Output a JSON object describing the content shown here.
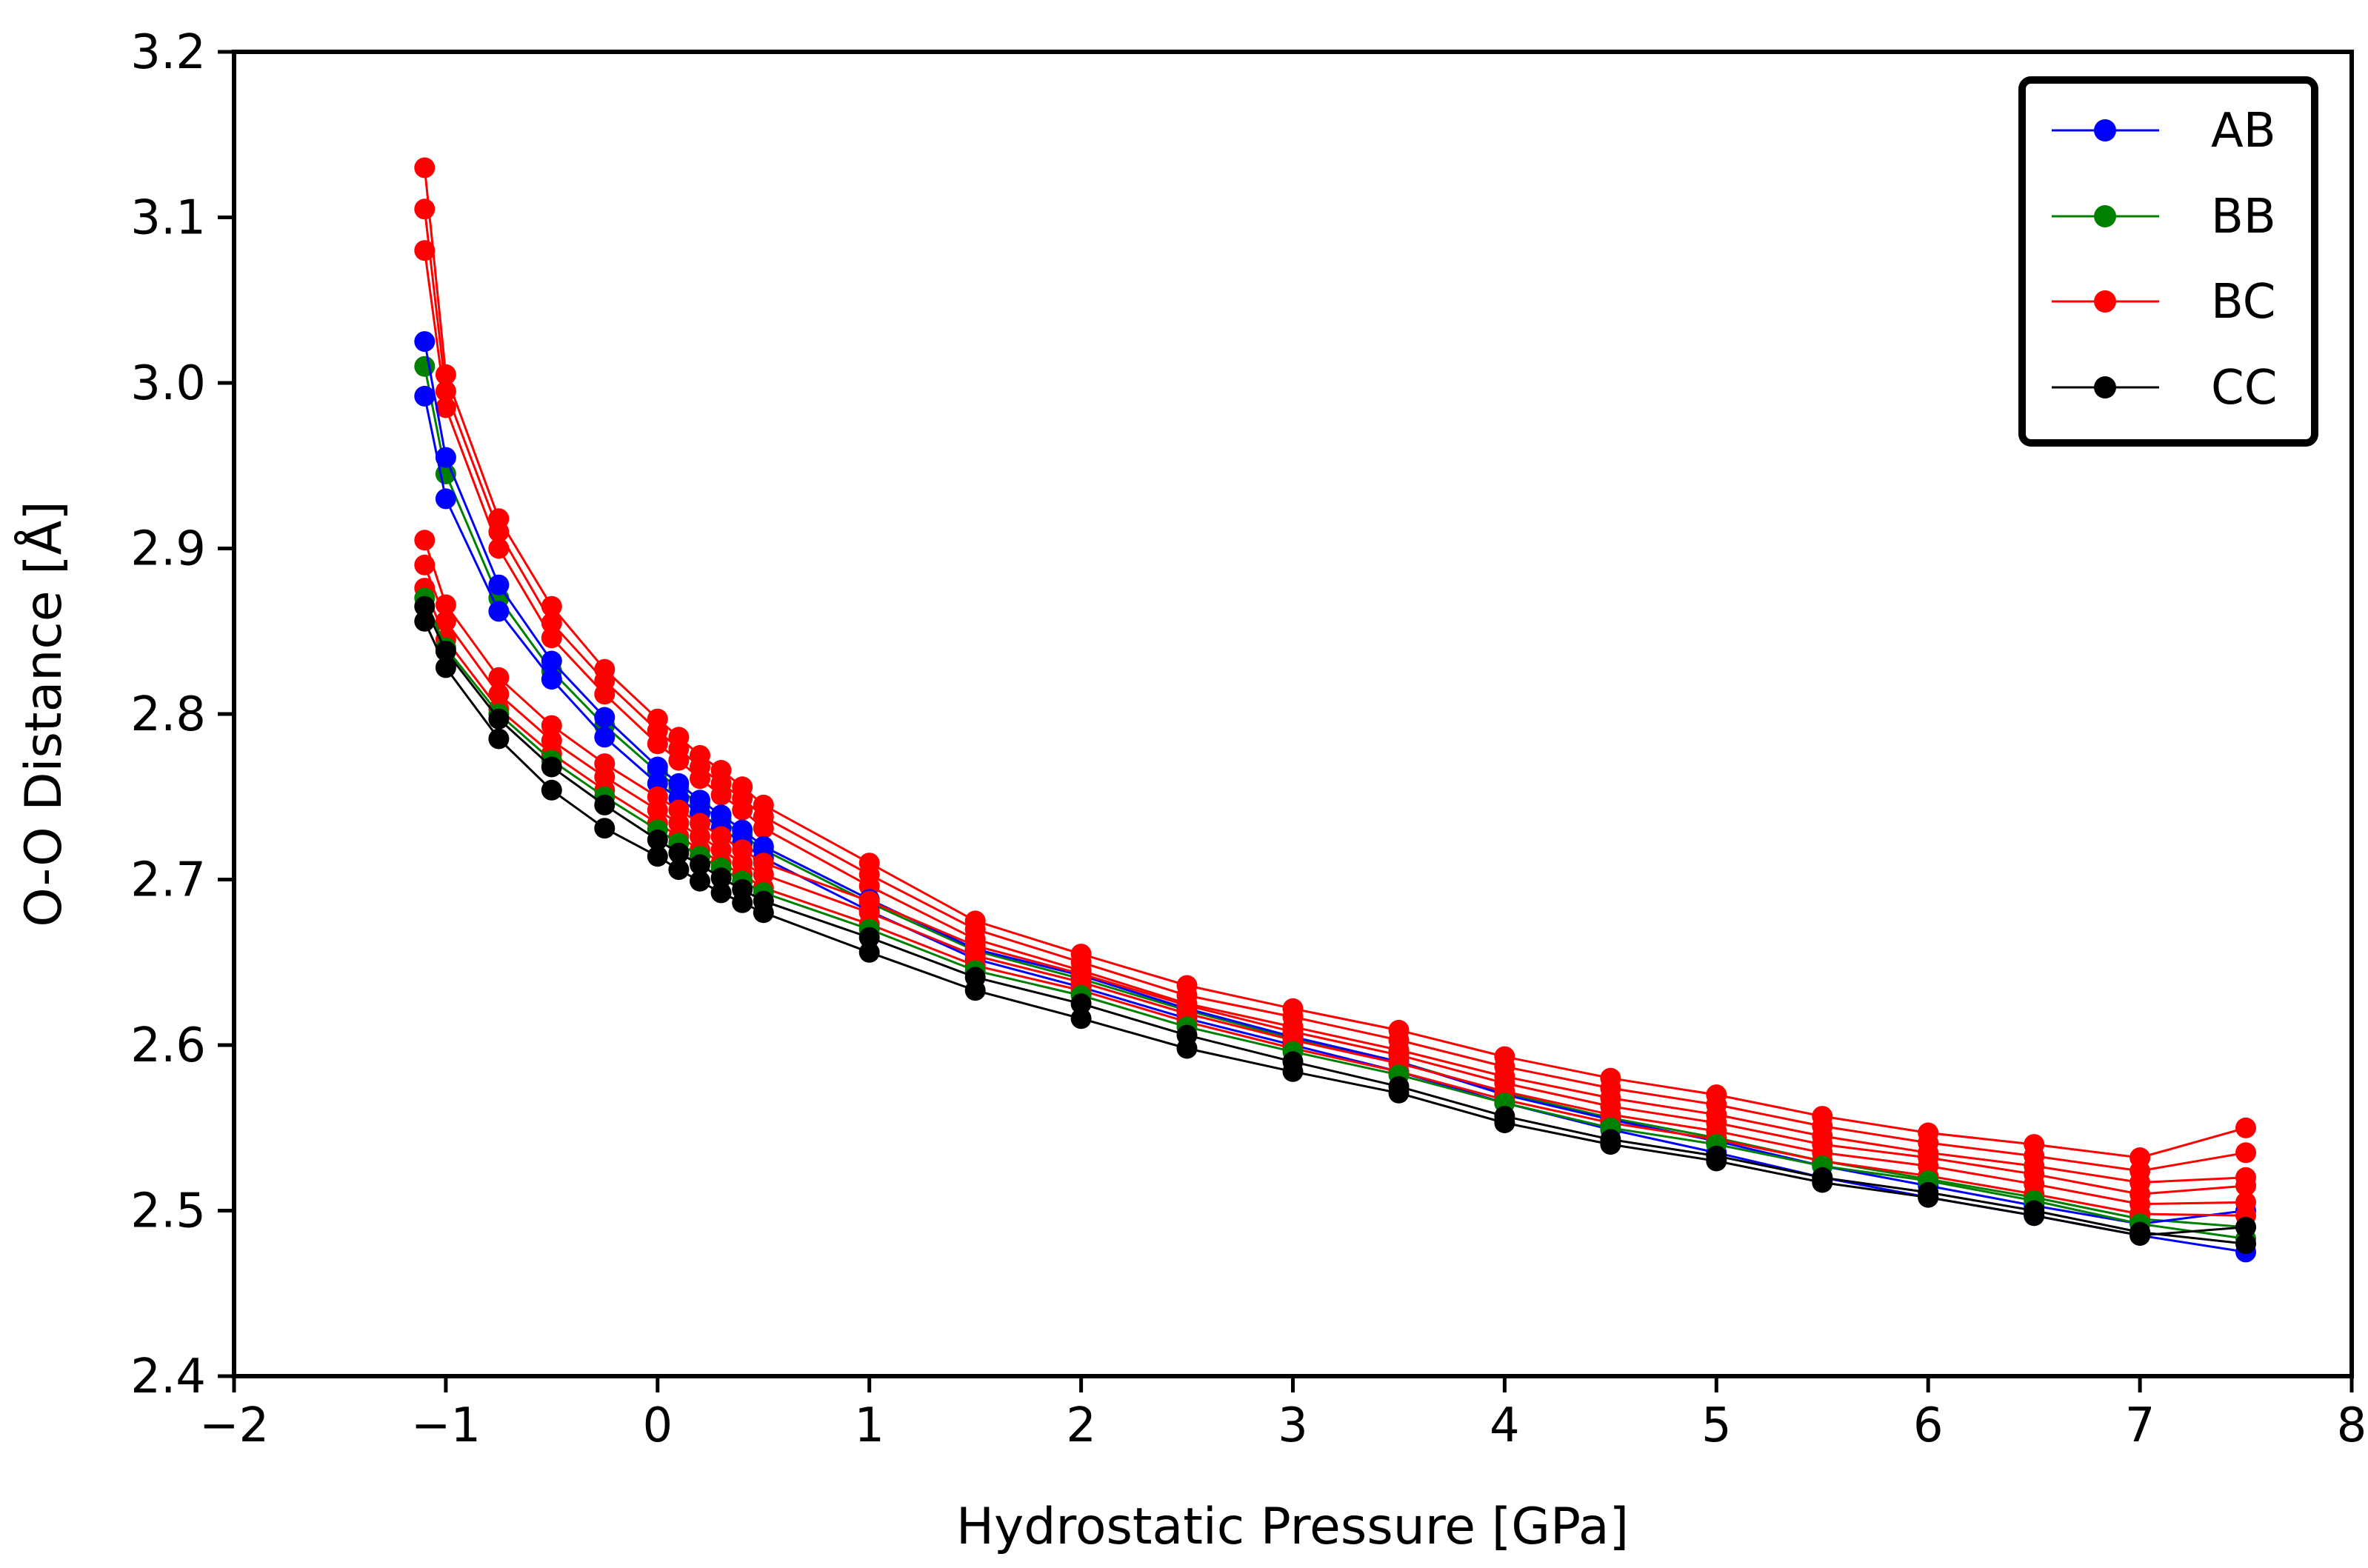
{
  "chart_data": {
    "type": "line",
    "title": "",
    "xlabel": "Hydrostatic Pressure [GPa]",
    "ylabel": "O-O Distance [Å]",
    "xlim": [
      -2,
      8
    ],
    "ylim": [
      2.4,
      3.2
    ],
    "xticks": [
      -2,
      -1,
      0,
      1,
      2,
      3,
      4,
      5,
      6,
      7,
      8
    ],
    "xtick_labels": [
      "−2",
      "−1",
      "0",
      "1",
      "2",
      "3",
      "4",
      "5",
      "6",
      "7",
      "8"
    ],
    "yticks": [
      2.4,
      2.5,
      2.6,
      2.7,
      2.8,
      2.9,
      3.0,
      3.1,
      3.2
    ],
    "ytick_labels": [
      "2.4",
      "2.5",
      "2.6",
      "2.7",
      "2.8",
      "2.9",
      "3.0",
      "3.1",
      "3.2"
    ],
    "grid": false,
    "legend_position": "top-right",
    "x": [
      -1.1,
      -1.0,
      -0.75,
      -0.5,
      -0.25,
      0,
      0.1,
      0.2,
      0.3,
      0.4,
      0.5,
      1,
      1.5,
      2,
      2.5,
      3,
      3.5,
      4,
      4.5,
      5,
      5.5,
      6,
      6.5,
      7,
      7.5
    ],
    "series": [
      {
        "name": "BC",
        "group": "BC",
        "color": "#ff0000",
        "values": [
          3.13,
          3.005,
          2.918,
          2.865,
          2.827,
          2.797,
          2.786,
          2.775,
          2.766,
          2.756,
          2.745,
          2.71,
          2.675,
          2.655,
          2.636,
          2.622,
          2.609,
          2.593,
          2.58,
          2.57,
          2.557,
          2.547,
          2.54,
          2.532,
          2.55
        ]
      },
      {
        "name": "BC",
        "group": "BC",
        "color": "#ff0000",
        "values": [
          3.105,
          2.995,
          2.91,
          2.855,
          2.82,
          2.79,
          2.779,
          2.768,
          2.758,
          2.749,
          2.738,
          2.703,
          2.67,
          2.65,
          2.63,
          2.617,
          2.603,
          2.587,
          2.574,
          2.564,
          2.551,
          2.541,
          2.533,
          2.524,
          2.535
        ]
      },
      {
        "name": "BC",
        "group": "BC",
        "color": "#ff0000",
        "values": [
          3.08,
          2.985,
          2.9,
          2.846,
          2.812,
          2.782,
          2.772,
          2.761,
          2.751,
          2.742,
          2.731,
          2.696,
          2.664,
          2.645,
          2.625,
          2.611,
          2.597,
          2.581,
          2.568,
          2.558,
          2.545,
          2.535,
          2.527,
          2.517,
          2.52
        ]
      },
      {
        "name": "BB",
        "group": "BB",
        "color": "#008000",
        "values": [
          3.01,
          2.945,
          2.87,
          2.826,
          2.793,
          2.765,
          2.755,
          2.745,
          2.736,
          2.727,
          2.718,
          2.686,
          2.657,
          2.64,
          2.621,
          2.604,
          2.59,
          2.571,
          2.556,
          2.544,
          2.53,
          2.519,
          2.508,
          2.495,
          2.49
        ]
      },
      {
        "name": "AB",
        "group": "AB",
        "color": "#0000ff",
        "values": [
          3.025,
          2.955,
          2.878,
          2.832,
          2.798,
          2.768,
          2.758,
          2.748,
          2.739,
          2.73,
          2.72,
          2.688,
          2.658,
          2.642,
          2.622,
          2.605,
          2.59,
          2.57,
          2.555,
          2.542,
          2.527,
          2.515,
          2.503,
          2.492,
          2.5
        ]
      },
      {
        "name": "AB",
        "group": "AB",
        "color": "#0000ff",
        "values": [
          2.992,
          2.93,
          2.862,
          2.821,
          2.786,
          2.758,
          2.749,
          2.74,
          2.731,
          2.722,
          2.713,
          2.681,
          2.652,
          2.635,
          2.616,
          2.6,
          2.584,
          2.565,
          2.549,
          2.535,
          2.52,
          2.508,
          2.497,
          2.485,
          2.475
        ]
      },
      {
        "name": "BC",
        "group": "BC",
        "color": "#ff0000",
        "values": [
          2.905,
          2.866,
          2.822,
          2.793,
          2.77,
          2.75,
          2.742,
          2.734,
          2.726,
          2.718,
          2.71,
          2.687,
          2.66,
          2.643,
          2.624,
          2.608,
          2.594,
          2.577,
          2.563,
          2.553,
          2.54,
          2.532,
          2.522,
          2.51,
          2.515
        ]
      },
      {
        "name": "BC",
        "group": "BC",
        "color": "#ff0000",
        "values": [
          2.89,
          2.856,
          2.812,
          2.784,
          2.762,
          2.742,
          2.734,
          2.726,
          2.718,
          2.71,
          2.703,
          2.68,
          2.654,
          2.638,
          2.619,
          2.603,
          2.589,
          2.572,
          2.558,
          2.548,
          2.535,
          2.527,
          2.516,
          2.504,
          2.505
        ]
      },
      {
        "name": "BC",
        "group": "BC",
        "color": "#ff0000",
        "values": [
          2.876,
          2.845,
          2.803,
          2.776,
          2.754,
          2.734,
          2.726,
          2.718,
          2.71,
          2.703,
          2.695,
          2.673,
          2.648,
          2.633,
          2.614,
          2.598,
          2.584,
          2.567,
          2.553,
          2.543,
          2.53,
          2.521,
          2.51,
          2.498,
          2.497
        ]
      },
      {
        "name": "BB",
        "group": "BB",
        "color": "#008000",
        "values": [
          2.87,
          2.84,
          2.8,
          2.772,
          2.75,
          2.73,
          2.722,
          2.714,
          2.707,
          2.699,
          2.692,
          2.67,
          2.645,
          2.63,
          2.611,
          2.596,
          2.582,
          2.565,
          2.55,
          2.54,
          2.527,
          2.518,
          2.506,
          2.492,
          2.483
        ]
      },
      {
        "name": "CC",
        "group": "CC",
        "color": "#000000",
        "values": [
          2.865,
          2.838,
          2.797,
          2.768,
          2.745,
          2.724,
          2.716,
          2.709,
          2.701,
          2.694,
          2.687,
          2.665,
          2.641,
          2.625,
          2.606,
          2.59,
          2.575,
          2.557,
          2.543,
          2.533,
          2.52,
          2.511,
          2.5,
          2.487,
          2.48
        ]
      },
      {
        "name": "CC",
        "group": "CC",
        "color": "#000000",
        "values": [
          2.856,
          2.828,
          2.785,
          2.754,
          2.731,
          2.714,
          2.706,
          2.699,
          2.692,
          2.686,
          2.68,
          2.656,
          2.633,
          2.616,
          2.598,
          2.584,
          2.571,
          2.553,
          2.54,
          2.53,
          2.517,
          2.508,
          2.497,
          2.485,
          2.49
        ]
      }
    ],
    "legend": [
      {
        "label": "AB",
        "color": "#0000ff"
      },
      {
        "label": "BB",
        "color": "#008000"
      },
      {
        "label": "BC",
        "color": "#ff0000"
      },
      {
        "label": "CC",
        "color": "#000000"
      }
    ]
  }
}
